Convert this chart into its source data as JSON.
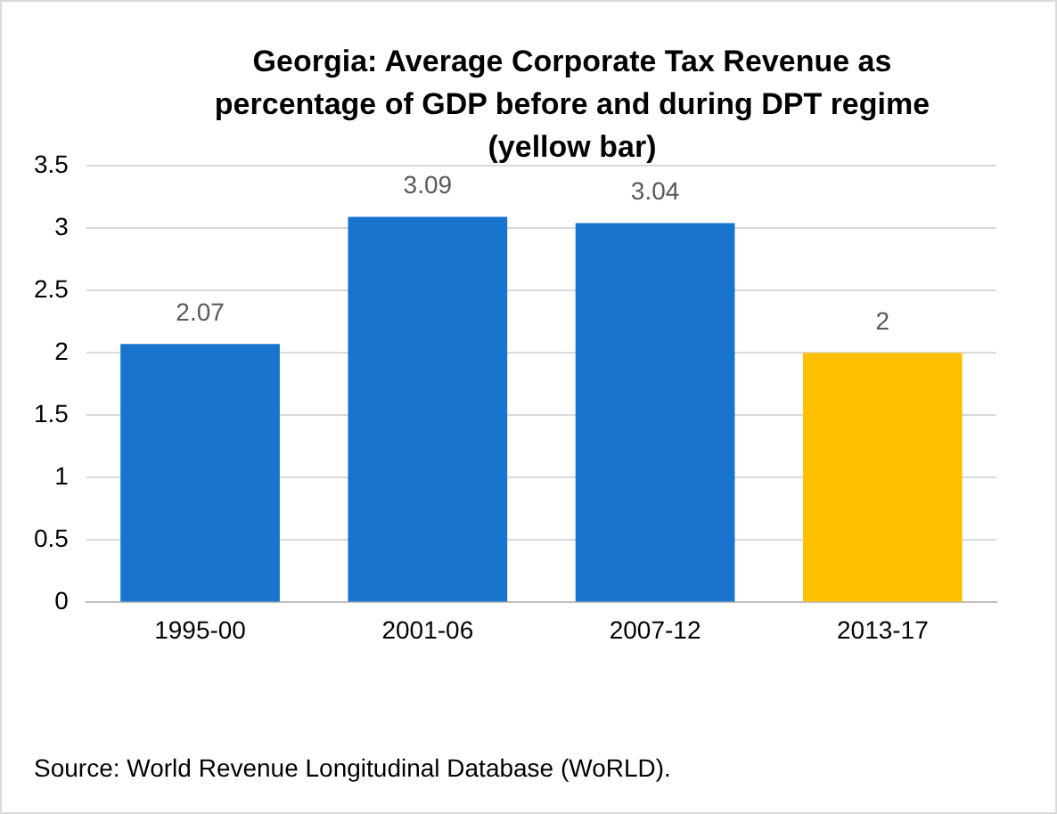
{
  "chart_data": {
    "type": "bar",
    "title": "Georgia: Average Corporate Tax Revenue as percentage of GDP before and during DPT regime (yellow bar)",
    "categories": [
      "1995-00",
      "2001-06",
      "2007-12",
      "2013-17"
    ],
    "values": [
      2.07,
      3.09,
      3.04,
      2
    ],
    "colors": [
      "#1874cd",
      "#1874cd",
      "#1874cd",
      "#ffc000"
    ],
    "ylim": [
      0,
      3.5
    ],
    "yticks": [
      0,
      0.5,
      1,
      1.5,
      2,
      2.5,
      3,
      3.5
    ],
    "grid": "y",
    "data_labels": true,
    "legend": false,
    "annotations": [
      "Source: World Revenue Longitudinal Database (WoRLD)."
    ]
  }
}
